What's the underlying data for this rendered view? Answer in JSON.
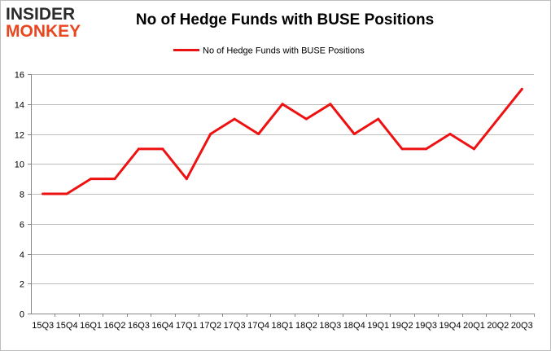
{
  "logo": {
    "line1": "INSIDER",
    "line2": "MONKEY"
  },
  "colors": {
    "series": "#ee1111",
    "grid": "#bcbcbc",
    "axis": "#888888",
    "logo_dark": "#2b2b2b",
    "logo_accent": "#e8461f"
  },
  "chart_data": {
    "type": "line",
    "title": "No of Hedge Funds with BUSE Positions",
    "xlabel": "",
    "ylabel": "",
    "ylim": [
      0,
      16
    ],
    "yticks": [
      0,
      2,
      4,
      6,
      8,
      10,
      12,
      14,
      16
    ],
    "grid": true,
    "legend": "top-center",
    "categories": [
      "15Q3",
      "15Q4",
      "16Q1",
      "16Q2",
      "16Q3",
      "16Q4",
      "17Q1",
      "17Q2",
      "17Q3",
      "17Q4",
      "18Q1",
      "18Q2",
      "18Q3",
      "18Q4",
      "19Q1",
      "19Q2",
      "19Q3",
      "19Q4",
      "20Q1",
      "20Q2",
      "20Q3"
    ],
    "series": [
      {
        "name": "No of Hedge Funds with BUSE Positions",
        "values": [
          8,
          8,
          9,
          9,
          11,
          11,
          9,
          12,
          13,
          12,
          14,
          13,
          14,
          12,
          13,
          11,
          11,
          12,
          11,
          13,
          15
        ]
      }
    ]
  }
}
